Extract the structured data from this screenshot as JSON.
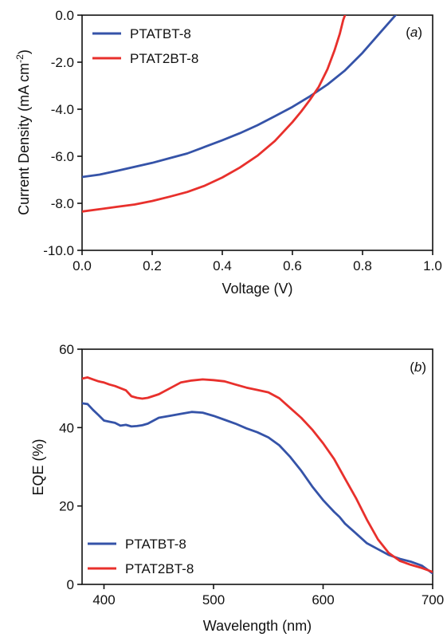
{
  "colors": {
    "series_a": "#3553a8",
    "series_b": "#e8302c",
    "axis": "#111111"
  },
  "chart_data": [
    {
      "type": "line",
      "panel_label_pre": "(",
      "panel_label": "a",
      "panel_label_post": ")",
      "xlabel": "Voltage (V)",
      "ylabel_main": "Current Density (mA cm",
      "ylabel_sup": "-2",
      "ylabel_end": ")",
      "xlim": [
        0.0,
        1.0
      ],
      "ylim": [
        -10.0,
        0.0
      ],
      "xticks": [
        0.0,
        0.2,
        0.4,
        0.6,
        0.8,
        1.0
      ],
      "xtick_labels": [
        "0.0",
        "0.2",
        "0.4",
        "0.6",
        "0.8",
        "1.0"
      ],
      "yticks": [
        0.0,
        -2.0,
        -4.0,
        -6.0,
        -8.0,
        -10.0
      ],
      "ytick_labels": [
        "0.0",
        "-2.0",
        "-4.0",
        "-6.0",
        "-8.0",
        "-10.0"
      ],
      "legend_position": "top-left",
      "series": [
        {
          "name": "PTATBT-8",
          "color": "#3553a8",
          "x": [
            0.0,
            0.05,
            0.1,
            0.15,
            0.2,
            0.25,
            0.3,
            0.35,
            0.4,
            0.45,
            0.5,
            0.55,
            0.6,
            0.65,
            0.7,
            0.75,
            0.8,
            0.85,
            0.9,
            0.91
          ],
          "y": [
            -6.88,
            -6.78,
            -6.62,
            -6.45,
            -6.28,
            -6.08,
            -5.88,
            -5.6,
            -5.32,
            -5.02,
            -4.68,
            -4.3,
            -3.9,
            -3.45,
            -2.95,
            -2.35,
            -1.6,
            -0.75,
            0.1,
            0.3
          ]
        },
        {
          "name": "PTAT2BT-8",
          "color": "#e8302c",
          "x": [
            0.0,
            0.05,
            0.1,
            0.15,
            0.2,
            0.25,
            0.3,
            0.35,
            0.4,
            0.45,
            0.5,
            0.55,
            0.6,
            0.625,
            0.65,
            0.675,
            0.7,
            0.72,
            0.735,
            0.745,
            0.75,
            0.755
          ],
          "y": [
            -8.35,
            -8.25,
            -8.15,
            -8.05,
            -7.9,
            -7.72,
            -7.52,
            -7.25,
            -6.9,
            -6.48,
            -5.98,
            -5.35,
            -4.55,
            -4.1,
            -3.6,
            -3.05,
            -2.3,
            -1.5,
            -0.8,
            -0.2,
            0.0,
            0.3
          ]
        }
      ]
    },
    {
      "type": "line",
      "panel_label_pre": "(",
      "panel_label": "b",
      "panel_label_post": ")",
      "xlabel": "Wavelength (nm)",
      "ylabel": "EQE (%)",
      "xlim": [
        380,
        700
      ],
      "ylim": [
        0,
        60
      ],
      "xticks": [
        400,
        500,
        600,
        700
      ],
      "xtick_labels": [
        "400",
        "500",
        "600",
        "700"
      ],
      "yticks": [
        0,
        20,
        40,
        60
      ],
      "ytick_labels": [
        "0",
        "20",
        "40",
        "60"
      ],
      "legend_position": "bottom-left",
      "series": [
        {
          "name": "PTATBT-8",
          "color": "#3553a8",
          "x": [
            380,
            385,
            390,
            395,
            400,
            405,
            410,
            415,
            420,
            425,
            430,
            435,
            440,
            450,
            460,
            470,
            480,
            490,
            500,
            510,
            520,
            530,
            540,
            550,
            560,
            570,
            580,
            590,
            600,
            610,
            615,
            620,
            630,
            640,
            650,
            660,
            670,
            680,
            690,
            700
          ],
          "y": [
            46.2,
            46.0,
            44.5,
            43.2,
            41.8,
            41.5,
            41.2,
            40.5,
            40.7,
            40.3,
            40.4,
            40.6,
            41.0,
            42.5,
            43.0,
            43.5,
            44.0,
            43.8,
            43.0,
            42.0,
            41.0,
            39.8,
            38.8,
            37.5,
            35.5,
            32.5,
            29.0,
            25.0,
            21.5,
            18.5,
            17.2,
            15.5,
            13.0,
            10.5,
            9.0,
            7.5,
            6.5,
            5.8,
            4.8,
            2.8
          ]
        },
        {
          "name": "PTAT2BT-8",
          "color": "#e8302c",
          "x": [
            380,
            385,
            390,
            395,
            400,
            405,
            410,
            420,
            425,
            430,
            435,
            440,
            450,
            460,
            470,
            480,
            490,
            500,
            510,
            520,
            530,
            540,
            550,
            560,
            570,
            580,
            590,
            600,
            610,
            620,
            630,
            640,
            650,
            660,
            670,
            680,
            690,
            700
          ],
          "y": [
            52.5,
            52.8,
            52.3,
            51.8,
            51.5,
            51.0,
            50.6,
            49.5,
            48.0,
            47.6,
            47.4,
            47.6,
            48.5,
            50.0,
            51.5,
            52.0,
            52.3,
            52.1,
            51.8,
            51.0,
            50.2,
            49.6,
            49.0,
            47.5,
            45.0,
            42.5,
            39.5,
            36.0,
            32.0,
            27.0,
            22.0,
            16.5,
            11.5,
            8.0,
            6.0,
            5.0,
            4.2,
            3.2
          ]
        }
      ]
    }
  ]
}
